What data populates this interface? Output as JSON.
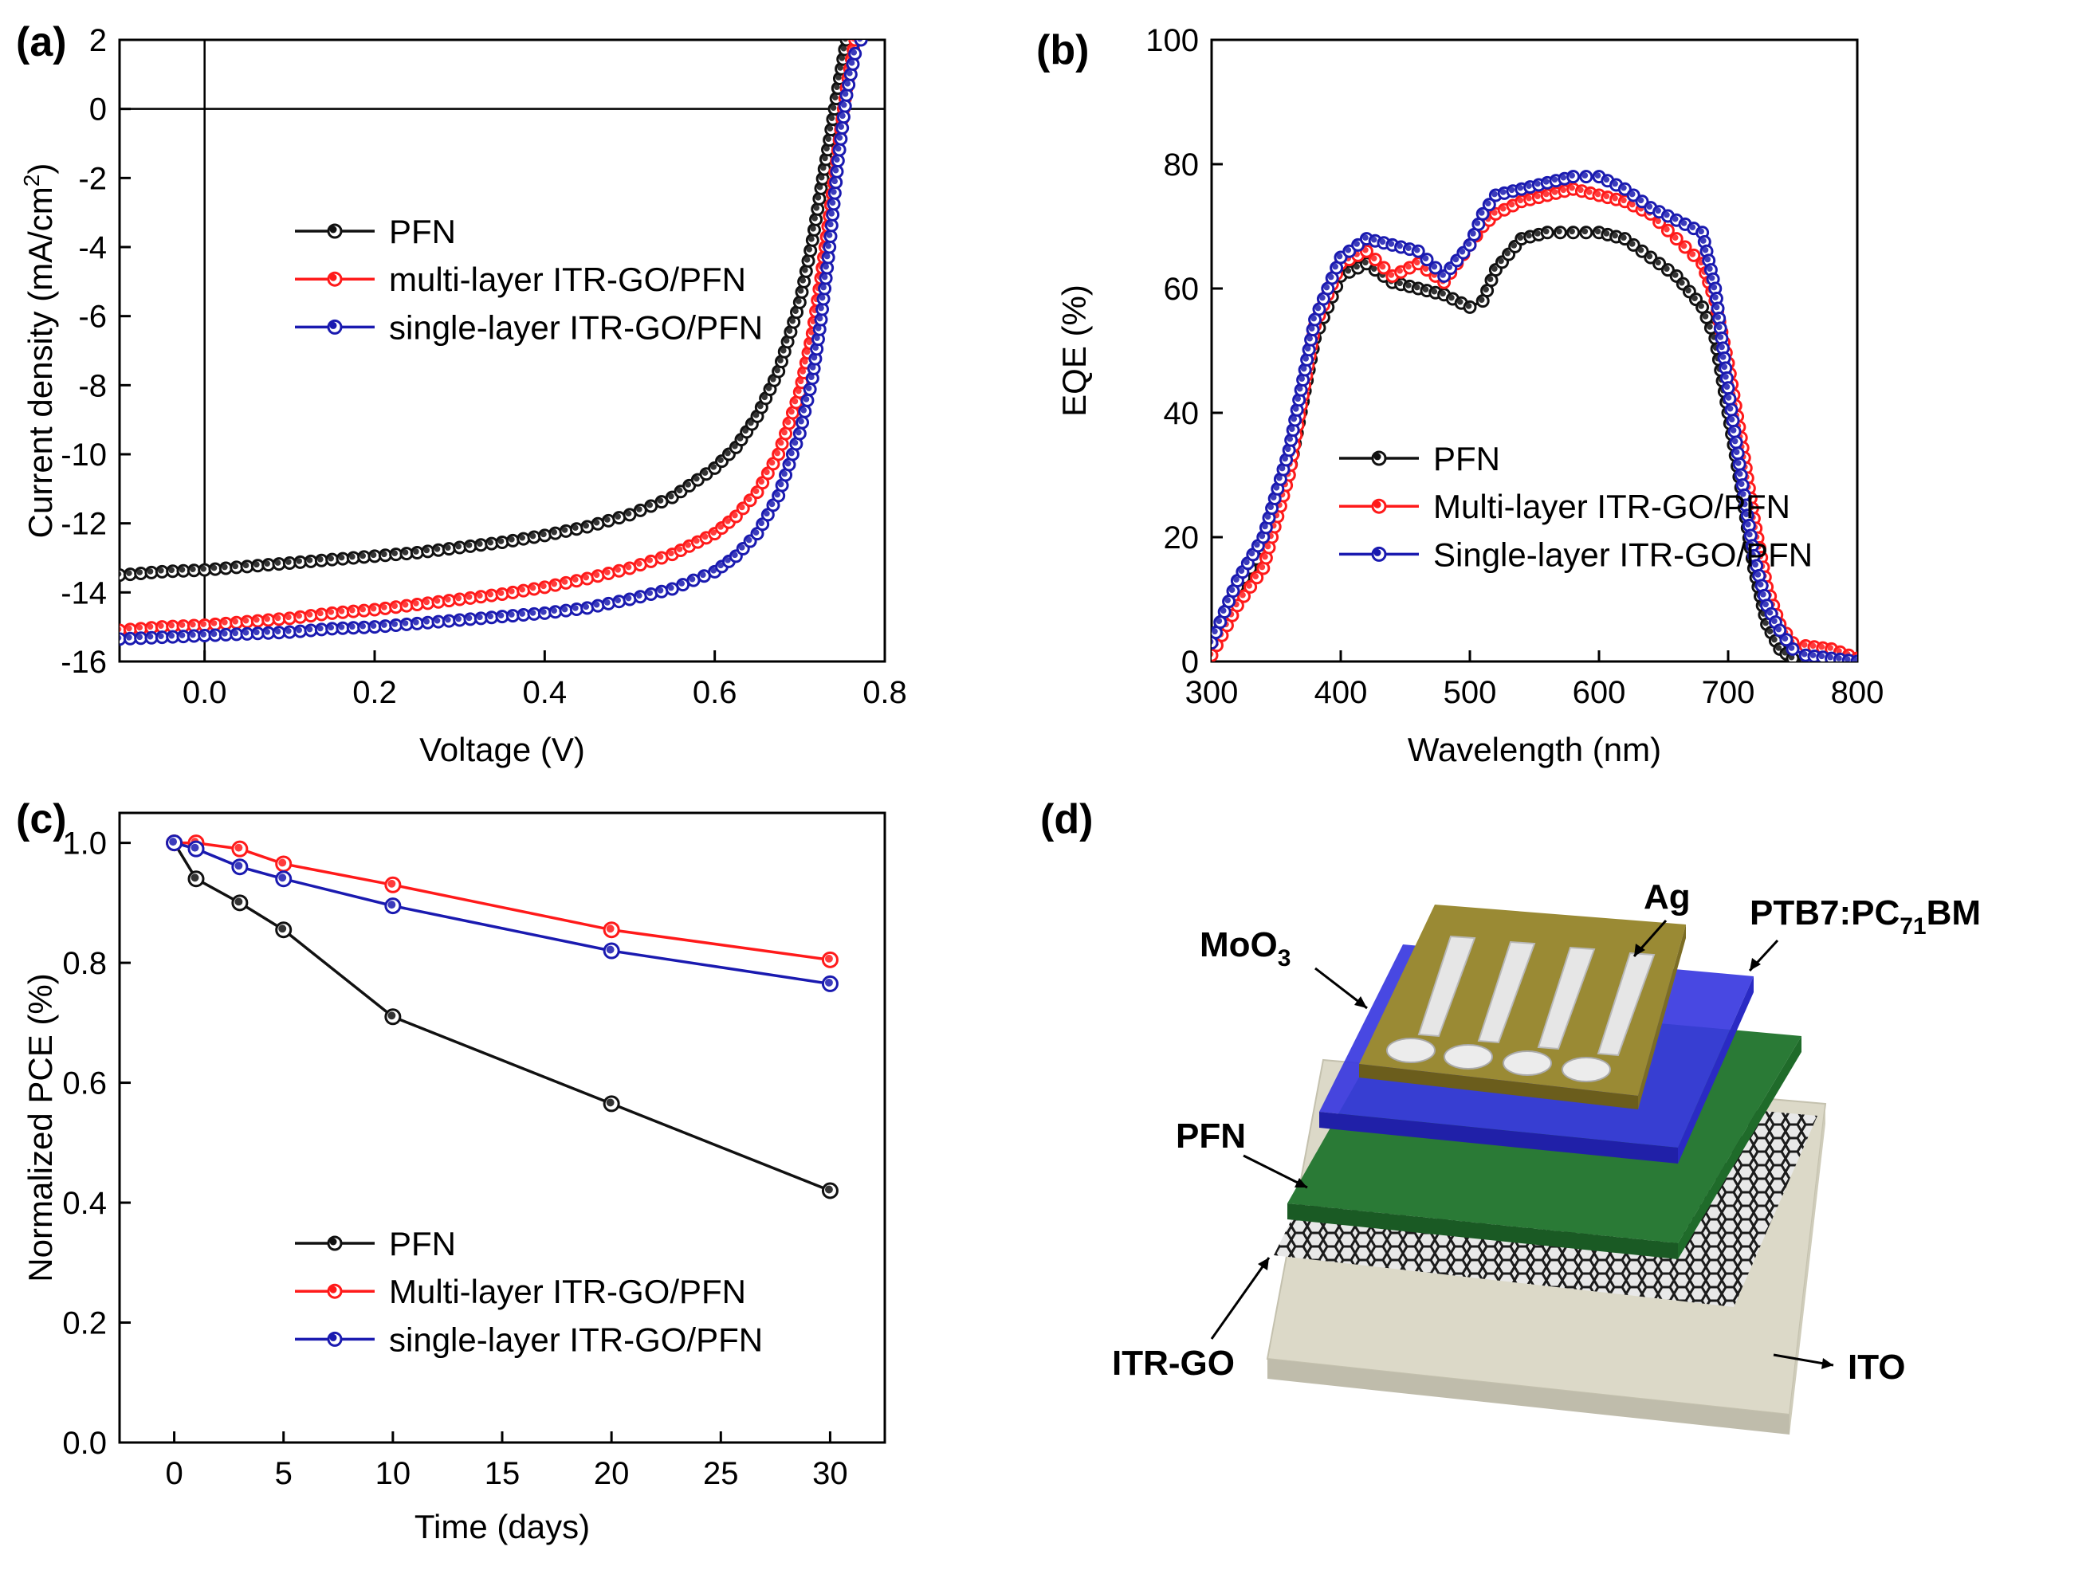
{
  "colors": {
    "pfn": "#111111",
    "multi": "#ff1a1a",
    "single": "#1a1ab0"
  },
  "panels": {
    "a": "(a)",
    "b": "(b)",
    "c": "(c)",
    "d": "(d)"
  },
  "chart_data": [
    {
      "id": "a",
      "type": "line",
      "title": "",
      "xlabel": "Voltage (V)",
      "ylabel": "Current density (mA/cm",
      "ylabel_sup": "2",
      "ylabel_end": ")",
      "xlim": [
        -0.1,
        0.8
      ],
      "ylim": [
        -16,
        2
      ],
      "xticks": [
        0.0,
        0.2,
        0.4,
        0.6,
        0.8
      ],
      "xtick_labels": [
        "0.0",
        "0.2",
        "0.4",
        "0.6",
        "0.8"
      ],
      "yticks": [
        -16,
        -14,
        -12,
        -10,
        -8,
        -6,
        -4,
        -2,
        0,
        2
      ],
      "ytick_labels": [
        "-16",
        "-14",
        "-12",
        "-10",
        "-8",
        "-6",
        "-4",
        "-2",
        "0",
        "2"
      ],
      "zero_lines": {
        "x": 0,
        "y": 0
      },
      "legend_position": "center-left",
      "series": [
        {
          "name": "PFN",
          "color_key": "pfn",
          "x": [
            -0.1,
            -0.05,
            0.0,
            0.05,
            0.1,
            0.15,
            0.2,
            0.25,
            0.3,
            0.35,
            0.4,
            0.45,
            0.5,
            0.55,
            0.6,
            0.625,
            0.65,
            0.675,
            0.7,
            0.715,
            0.725,
            0.735,
            0.745,
            0.755
          ],
          "y": [
            -13.5,
            -13.4,
            -13.35,
            -13.25,
            -13.15,
            -13.05,
            -12.95,
            -12.85,
            -12.7,
            -12.55,
            -12.35,
            -12.1,
            -11.75,
            -11.25,
            -10.4,
            -9.8,
            -8.9,
            -7.6,
            -5.6,
            -3.8,
            -2.3,
            -0.9,
            0.6,
            2.0
          ]
        },
        {
          "name": "multi-layer ITR-GO/PFN",
          "color_key": "multi",
          "x": [
            -0.1,
            -0.05,
            0.0,
            0.05,
            0.1,
            0.15,
            0.2,
            0.25,
            0.3,
            0.35,
            0.4,
            0.45,
            0.5,
            0.55,
            0.6,
            0.625,
            0.65,
            0.675,
            0.7,
            0.715,
            0.725,
            0.735,
            0.745,
            0.755,
            0.765
          ],
          "y": [
            -15.1,
            -15.0,
            -14.95,
            -14.85,
            -14.75,
            -14.6,
            -14.5,
            -14.35,
            -14.2,
            -14.05,
            -13.85,
            -13.6,
            -13.3,
            -12.9,
            -12.3,
            -11.8,
            -11.1,
            -10.0,
            -8.2,
            -6.5,
            -4.9,
            -3.1,
            -1.2,
            0.6,
            2.0
          ]
        },
        {
          "name": "single-layer ITR-GO/PFN",
          "color_key": "single",
          "x": [
            -0.1,
            -0.05,
            0.0,
            0.05,
            0.1,
            0.15,
            0.2,
            0.25,
            0.3,
            0.35,
            0.4,
            0.45,
            0.5,
            0.55,
            0.6,
            0.625,
            0.65,
            0.675,
            0.7,
            0.715,
            0.725,
            0.735,
            0.745,
            0.755,
            0.765,
            0.772
          ],
          "y": [
            -15.35,
            -15.3,
            -15.25,
            -15.2,
            -15.15,
            -15.05,
            -15.0,
            -14.9,
            -14.8,
            -14.7,
            -14.6,
            -14.45,
            -14.2,
            -13.9,
            -13.4,
            -12.95,
            -12.3,
            -11.2,
            -9.4,
            -7.8,
            -6.1,
            -4.0,
            -1.5,
            0.4,
            1.6,
            2.0
          ]
        }
      ]
    },
    {
      "id": "b",
      "type": "line",
      "title": "",
      "xlabel": "Wavelength (nm)",
      "ylabel": "EQE (%)",
      "xlim": [
        300,
        800
      ],
      "ylim": [
        0,
        100
      ],
      "xticks": [
        300,
        400,
        500,
        600,
        700,
        800
      ],
      "xtick_labels": [
        "300",
        "400",
        "500",
        "600",
        "700",
        "800"
      ],
      "yticks": [
        0,
        20,
        40,
        60,
        80,
        100
      ],
      "ytick_labels": [
        "0",
        "20",
        "40",
        "60",
        "80",
        "100"
      ],
      "legend_position": "lower-left",
      "series": [
        {
          "name": "PFN",
          "color_key": "pfn",
          "x": [
            300,
            320,
            340,
            360,
            380,
            400,
            420,
            440,
            460,
            480,
            500,
            510,
            520,
            540,
            560,
            580,
            600,
            620,
            640,
            660,
            680,
            690,
            700,
            710,
            720,
            730,
            740,
            750,
            760,
            780,
            800
          ],
          "y": [
            2,
            12,
            18,
            30,
            52,
            62,
            64,
            61,
            60,
            59,
            57,
            58,
            63,
            68,
            69,
            69,
            69,
            68,
            65,
            62,
            57,
            52,
            40,
            28,
            15,
            6,
            2,
            0.5,
            0,
            0,
            0
          ]
        },
        {
          "name": "Multi-layer ITR-GO/PFN",
          "color_key": "multi",
          "x": [
            300,
            320,
            340,
            360,
            380,
            400,
            420,
            440,
            460,
            480,
            500,
            510,
            520,
            540,
            560,
            580,
            600,
            620,
            640,
            660,
            680,
            690,
            700,
            710,
            720,
            730,
            740,
            750,
            760,
            780,
            800
          ],
          "y": [
            1,
            9,
            15,
            30,
            54,
            64,
            66,
            62,
            64,
            61,
            67,
            70,
            72,
            74,
            75,
            76,
            75,
            74,
            72,
            68,
            64,
            58,
            48,
            36,
            23,
            12,
            6,
            3,
            2.5,
            2,
            0.5
          ]
        },
        {
          "name": "Single-layer ITR-GO/PFN",
          "color_key": "single",
          "x": [
            300,
            320,
            340,
            360,
            380,
            400,
            420,
            440,
            460,
            480,
            500,
            510,
            520,
            540,
            560,
            580,
            600,
            620,
            640,
            660,
            680,
            690,
            700,
            710,
            720,
            730,
            740,
            750,
            760,
            780,
            800
          ],
          "y": [
            3,
            13,
            20,
            34,
            55,
            65,
            68,
            67,
            66,
            62,
            67,
            72,
            75,
            76,
            77,
            78,
            78,
            76,
            73,
            71,
            69,
            60,
            44,
            30,
            17,
            9,
            5,
            2,
            1,
            0.5,
            0
          ]
        }
      ]
    },
    {
      "id": "c",
      "type": "line",
      "title": "",
      "xlabel": "Time (days)",
      "ylabel": "Normalized PCE (%)",
      "xlim": [
        -2.5,
        32.5
      ],
      "ylim": [
        0.0,
        1.05
      ],
      "xticks": [
        0,
        5,
        10,
        15,
        20,
        25,
        30
      ],
      "xtick_labels": [
        "0",
        "5",
        "10",
        "15",
        "20",
        "25",
        "30"
      ],
      "yticks": [
        0.0,
        0.2,
        0.4,
        0.6,
        0.8,
        1.0
      ],
      "ytick_labels": [
        "0.0",
        "0.2",
        "0.4",
        "0.6",
        "0.8",
        "1.0"
      ],
      "legend_position": "lower-center",
      "series": [
        {
          "name": "PFN",
          "color_key": "pfn",
          "x": [
            0,
            1,
            3,
            5,
            10,
            20,
            30
          ],
          "y": [
            1.0,
            0.94,
            0.9,
            0.855,
            0.71,
            0.565,
            0.42
          ]
        },
        {
          "name": "Multi-layer ITR-GO/PFN",
          "color_key": "multi",
          "x": [
            0,
            1,
            3,
            5,
            10,
            20,
            30
          ],
          "y": [
            1.0,
            1.0,
            0.99,
            0.965,
            0.93,
            0.855,
            0.805
          ]
        },
        {
          "name": "single-layer ITR-GO/PFN",
          "color_key": "single",
          "x": [
            0,
            1,
            3,
            5,
            10,
            20,
            30
          ],
          "y": [
            1.0,
            0.99,
            0.96,
            0.94,
            0.895,
            0.82,
            0.765
          ]
        }
      ]
    }
  ],
  "diagram": {
    "labels": {
      "ag": "Ag",
      "ptb7_pre": "PTB7:PC",
      "ptb7_sub": "71",
      "ptb7_post": "BM",
      "moo3_pre": "MoO",
      "moo3_sub": "3",
      "pfn": "PFN",
      "itrgo": "ITR-GO",
      "ito": "ITO"
    },
    "layer_colors": {
      "ito": "#d9d6c6",
      "graphene": "#202020",
      "pfn": "#1f6b2a",
      "ptb7": "#3030d8",
      "moo3": "#8f7e2e",
      "ag": "#e4e4e4"
    }
  }
}
